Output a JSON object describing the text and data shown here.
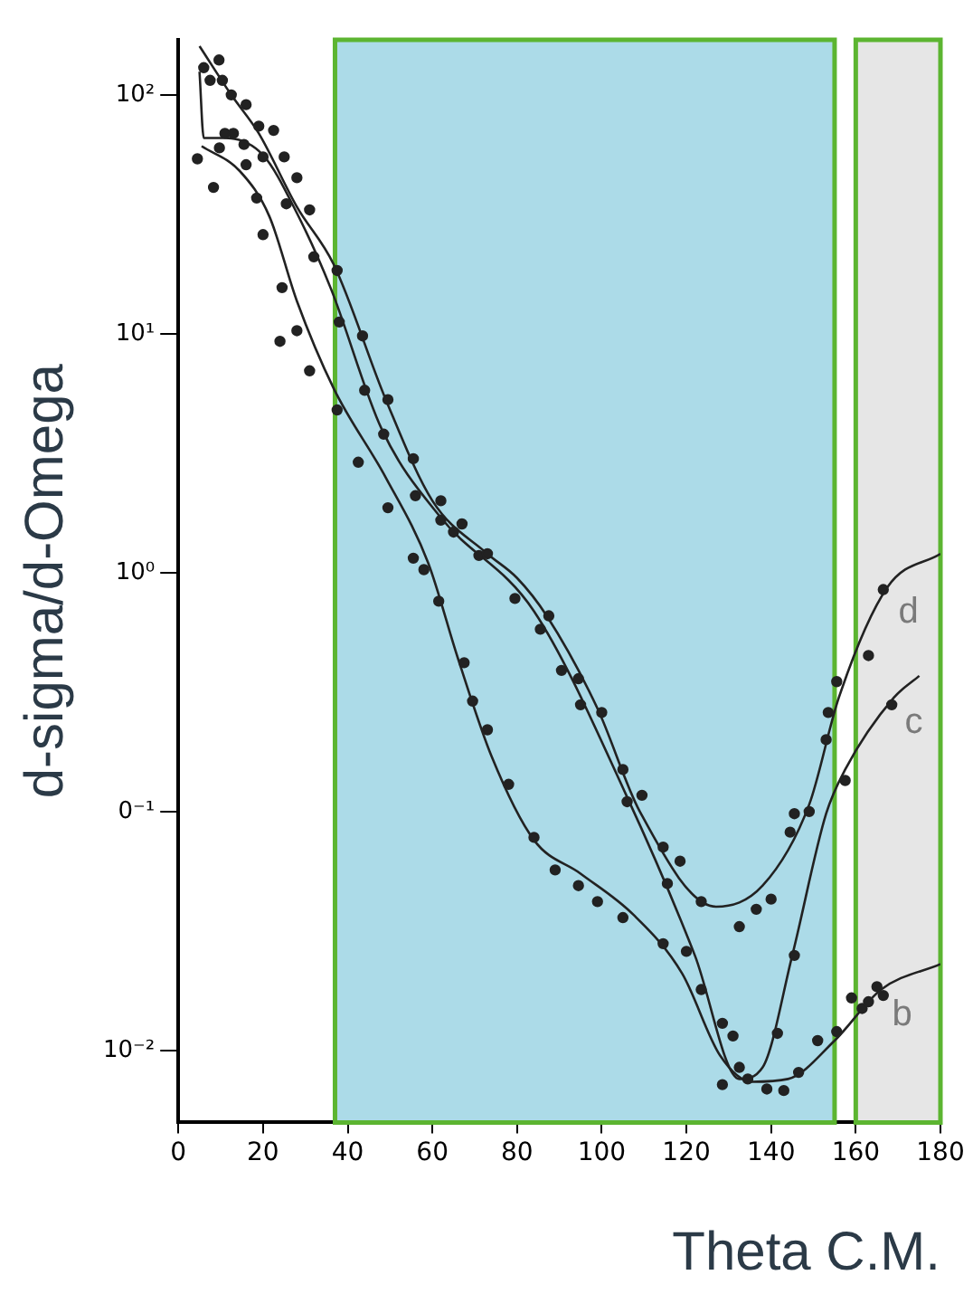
{
  "chart_data": {
    "type": "scatter",
    "xlabel": "Theta C.M.",
    "ylabel": "d-sigma/d-Omega",
    "log": "y",
    "grid": false,
    "legend": false,
    "xlim": [
      0,
      180
    ],
    "xticks": [
      0,
      20,
      40,
      60,
      80,
      100,
      120,
      140,
      160,
      180
    ],
    "ylim": [
      0.005,
      170
    ],
    "yticks": [
      {
        "value": 0.01,
        "label": "10⁻²"
      },
      {
        "value": 0.1,
        "label": "0⁻¹"
      },
      {
        "value": 1,
        "label": "10⁰"
      },
      {
        "value": 10,
        "label": "10¹"
      },
      {
        "value": 100,
        "label": "10²"
      }
    ],
    "bands": [
      {
        "axis": "x",
        "from": 37,
        "to": 155,
        "color": "#acdbe8"
      },
      {
        "axis": "x",
        "from": 160,
        "to": 180,
        "color": "#e6e6e6"
      }
    ],
    "series": [
      {
        "type": "line",
        "name": "d",
        "marker": "none",
        "color": "#222222",
        "x": [
          5,
          12.5,
          19,
          28,
          36.7,
          49,
          60,
          73,
          80,
          87,
          99,
          109,
          127,
          138,
          149,
          156,
          167.5,
          180
        ],
        "values": [
          160,
          100,
          69,
          34,
          19.5,
          5.3,
          2.0,
          1.2,
          0.95,
          0.66,
          0.27,
          0.1,
          0.04,
          0.049,
          0.107,
          0.3,
          0.87,
          1.2
        ]
      },
      {
        "type": "line",
        "name": "c",
        "marker": "none",
        "color": "#222222",
        "x": [
          5,
          6,
          11,
          20,
          28,
          36,
          48,
          62,
          84,
          106,
          122,
          132.5,
          138,
          145,
          153,
          157.5,
          169,
          175
        ],
        "values": [
          125,
          66,
          66,
          56,
          32,
          15.5,
          4.0,
          1.7,
          0.69,
          0.115,
          0.025,
          0.0076,
          0.0085,
          0.025,
          0.098,
          0.15,
          0.3,
          0.37
        ]
      },
      {
        "type": "line",
        "name": "b",
        "marker": "none",
        "color": "#222222",
        "x": [
          5.5,
          14.5,
          21.5,
          28,
          36.7,
          49,
          59,
          66,
          74,
          84,
          95,
          107.5,
          119,
          128,
          135.5,
          144,
          155,
          166,
          180
        ],
        "values": [
          61,
          48,
          31,
          13.7,
          5.9,
          2.5,
          1.1,
          0.44,
          0.17,
          0.076,
          0.055,
          0.037,
          0.021,
          0.0095,
          0.0074,
          0.0076,
          0.011,
          0.018,
          0.023
        ]
      },
      {
        "type": "scatter",
        "marker": "circle",
        "color": "#222222",
        "x": [
          9.6,
          10.4,
          12.5,
          16,
          19,
          22.5,
          25,
          28,
          31,
          37.5,
          43.5,
          49.5,
          55.5,
          62,
          67,
          73,
          87.5,
          94.5,
          100,
          105,
          109.5,
          114.5,
          118.5,
          123.5,
          132.5,
          136.5,
          140,
          144.5,
          145.5,
          149,
          153,
          153.5,
          155.5,
          163,
          166.5
        ],
        "values": [
          140,
          115,
          100,
          91,
          74,
          71,
          55,
          45,
          33,
          18.4,
          9.8,
          5.3,
          3.0,
          2.0,
          1.6,
          1.2,
          0.66,
          0.36,
          0.26,
          0.15,
          0.117,
          0.071,
          0.062,
          0.042,
          0.033,
          0.039,
          0.043,
          0.082,
          0.098,
          0.1,
          0.2,
          0.26,
          0.35,
          0.45,
          0.85
        ]
      },
      {
        "type": "scatter",
        "marker": "circle",
        "color": "#222222",
        "x": [
          6,
          7.5,
          8.3,
          9.7,
          11,
          13,
          15.5,
          20,
          25.5,
          32,
          38,
          44,
          48.5,
          56,
          62,
          65,
          71,
          79.5,
          85.5,
          90.5,
          95,
          106,
          115.5,
          128.5,
          141.5,
          145.5,
          157.5,
          168.5
        ],
        "values": [
          130,
          115,
          41,
          60,
          69,
          69,
          62,
          55,
          35,
          21,
          11.2,
          5.8,
          3.8,
          2.1,
          1.66,
          1.48,
          1.18,
          0.78,
          0.58,
          0.39,
          0.28,
          0.11,
          0.05,
          0.0072,
          0.0118,
          0.025,
          0.135,
          0.28
        ]
      },
      {
        "type": "scatter",
        "marker": "circle",
        "color": "#222222",
        "x": [
          4.5,
          16,
          18.5,
          20,
          24,
          24.5,
          28,
          31,
          37.5,
          42.5,
          49.5,
          55.5,
          58,
          61.5,
          67.5,
          69.5,
          73,
          78,
          84,
          89,
          94.5,
          99,
          105,
          114.5,
          120,
          123.5,
          128.5,
          131,
          132.5,
          134.5,
          139,
          143,
          146.5,
          151,
          155.5,
          159,
          161.5,
          163,
          165,
          166.5
        ],
        "values": [
          54,
          51,
          37,
          26,
          9.3,
          15.6,
          10.3,
          7.0,
          4.8,
          2.9,
          1.87,
          1.15,
          1.03,
          0.76,
          0.42,
          0.29,
          0.22,
          0.13,
          0.078,
          0.057,
          0.049,
          0.042,
          0.036,
          0.028,
          0.026,
          0.018,
          0.013,
          0.0115,
          0.0085,
          0.0076,
          0.0069,
          0.0068,
          0.0081,
          0.011,
          0.012,
          0.0166,
          0.015,
          0.016,
          0.0185,
          0.017
        ]
      }
    ]
  }
}
